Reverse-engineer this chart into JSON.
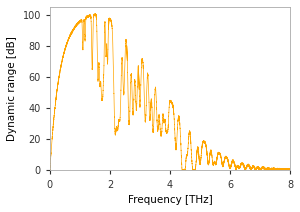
{
  "xlabel": "Frequency [THz]",
  "ylabel": "Dynamic range [dB]",
  "xlim": [
    0,
    8
  ],
  "ylim": [
    0,
    105
  ],
  "xticks": [
    0,
    2,
    4,
    6,
    8
  ],
  "yticks": [
    0,
    20,
    40,
    60,
    80,
    100
  ],
  "line_color": "#FFA500",
  "background_color": "#ffffff",
  "figsize": [
    3.0,
    2.12
  ],
  "dpi": 100,
  "water_vapor_lines_freq": [
    1.1,
    1.17,
    1.41,
    1.6,
    1.67,
    1.72,
    1.76,
    1.8,
    1.87,
    1.92,
    2.17,
    2.26,
    2.34,
    2.46,
    2.64,
    2.77,
    2.88,
    3.0,
    3.18,
    3.33,
    3.44,
    3.59,
    3.68,
    3.73,
    3.8,
    3.87,
    3.93,
    4.2,
    4.4,
    4.46,
    4.5,
    4.58,
    4.74,
    4.8,
    4.86,
    5.0,
    5.28,
    5.44,
    5.53,
    5.76,
    6.0,
    6.2,
    6.31,
    6.51,
    6.7,
    6.85,
    7.0,
    7.2,
    7.35,
    7.5,
    7.72
  ],
  "water_vapor_depths": [
    0.2,
    0.15,
    0.35,
    0.4,
    0.45,
    0.3,
    0.5,
    0.2,
    0.25,
    0.3,
    0.7,
    0.6,
    0.55,
    0.45,
    0.65,
    0.55,
    0.5,
    0.45,
    0.55,
    0.5,
    0.6,
    0.55,
    0.45,
    0.4,
    0.35,
    0.45,
    0.4,
    0.65,
    0.75,
    0.7,
    0.65,
    0.6,
    0.7,
    0.65,
    0.7,
    0.8,
    0.75,
    0.7,
    0.65,
    0.7,
    0.8,
    0.75,
    0.7,
    0.75,
    0.7,
    0.65,
    0.7,
    0.65,
    0.6,
    0.65,
    0.6
  ],
  "water_vapor_widths": [
    0.02,
    0.018,
    0.025,
    0.03,
    0.04,
    0.025,
    0.035,
    0.02,
    0.022,
    0.025,
    0.06,
    0.055,
    0.05,
    0.045,
    0.055,
    0.05,
    0.045,
    0.04,
    0.05,
    0.045,
    0.05,
    0.048,
    0.042,
    0.038,
    0.035,
    0.042,
    0.038,
    0.055,
    0.06,
    0.055,
    0.05,
    0.048,
    0.055,
    0.05,
    0.055,
    0.06,
    0.055,
    0.05,
    0.048,
    0.055,
    0.06,
    0.055,
    0.05,
    0.055,
    0.05,
    0.048,
    0.052,
    0.048,
    0.045,
    0.05,
    0.045
  ]
}
